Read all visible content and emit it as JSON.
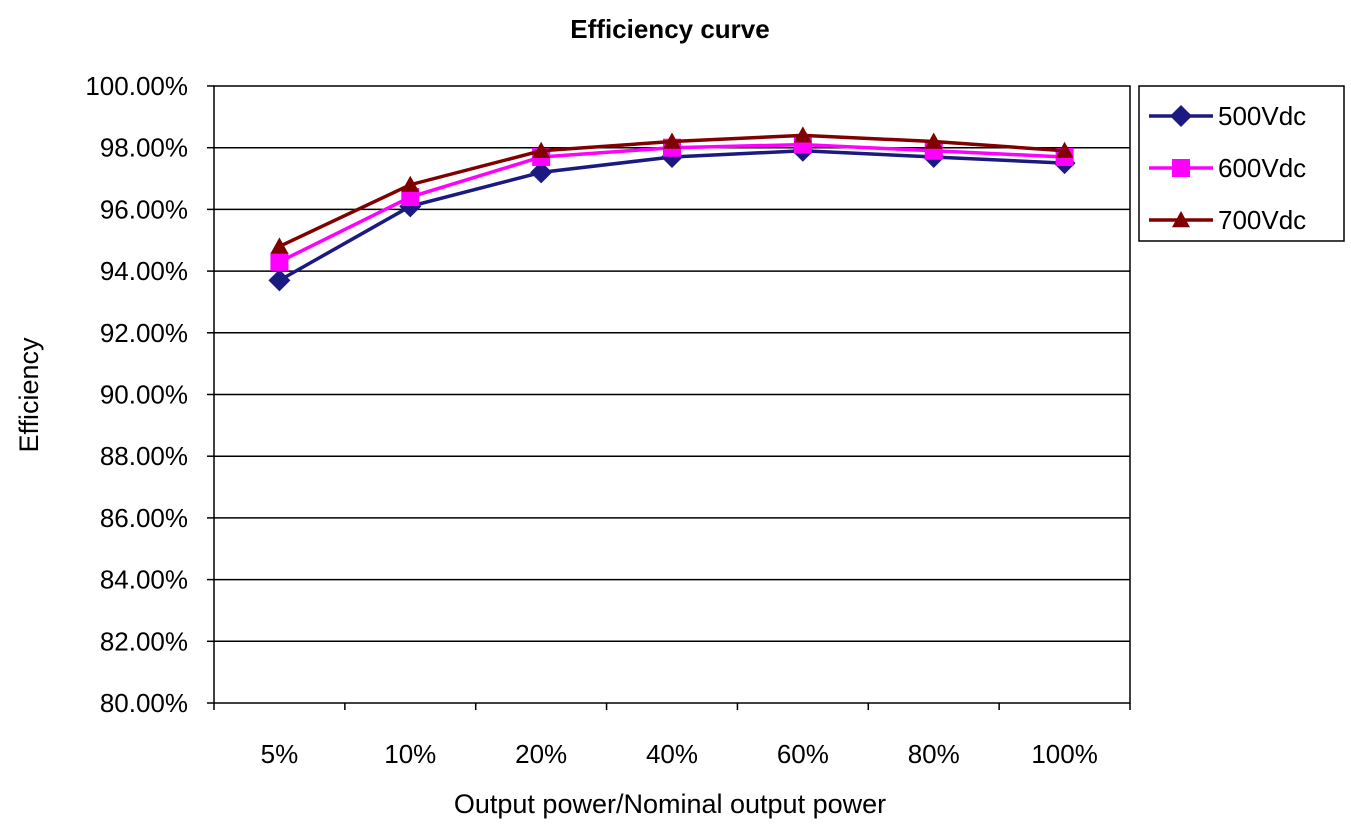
{
  "chart_data": {
    "type": "line",
    "title": "Efficiency curve",
    "xlabel": "Output power/Nominal output power",
    "ylabel": "Efficiency",
    "categories": [
      "5%",
      "10%",
      "20%",
      "40%",
      "60%",
      "80%",
      "100%"
    ],
    "y_ticks": [
      "80.00%",
      "82.00%",
      "84.00%",
      "86.00%",
      "88.00%",
      "90.00%",
      "92.00%",
      "94.00%",
      "96.00%",
      "98.00%",
      "100.00%"
    ],
    "ylim": [
      80,
      100
    ],
    "grid": "horizontal",
    "legend_position": "right-top",
    "series": [
      {
        "name": "500Vdc",
        "color": "#1a1a80",
        "marker": "diamond",
        "values": [
          93.7,
          96.1,
          97.2,
          97.7,
          97.9,
          97.7,
          97.5
        ]
      },
      {
        "name": "600Vdc",
        "color": "#ff00ff",
        "marker": "square",
        "values": [
          94.3,
          96.4,
          97.7,
          98.0,
          98.1,
          97.9,
          97.7
        ]
      },
      {
        "name": "700Vdc",
        "color": "#800000",
        "marker": "triangle",
        "values": [
          94.8,
          96.8,
          97.9,
          98.2,
          98.4,
          98.2,
          97.9
        ]
      }
    ]
  }
}
